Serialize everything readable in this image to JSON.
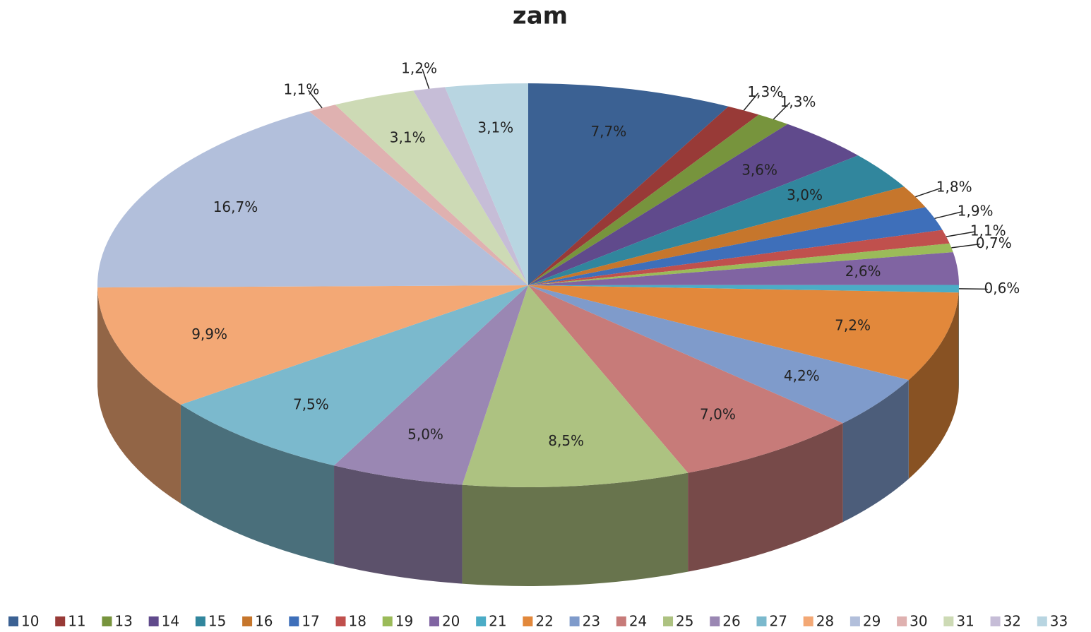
{
  "chart_data": {
    "type": "pie",
    "title": "zam",
    "categories": [
      "10",
      "11",
      "13",
      "14",
      "15",
      "16",
      "17",
      "18",
      "19",
      "20",
      "21",
      "22",
      "23",
      "24",
      "25",
      "26",
      "27",
      "28",
      "29",
      "30",
      "31",
      "32",
      "33"
    ],
    "values": [
      7.7,
      1.3,
      1.3,
      3.6,
      3.0,
      1.8,
      1.9,
      1.1,
      0.7,
      2.6,
      0.6,
      7.2,
      4.2,
      7.0,
      8.5,
      5.0,
      7.5,
      9.9,
      16.7,
      1.1,
      3.1,
      1.2,
      3.1
    ],
    "value_labels": [
      "7,7%",
      "1,3%",
      "1,3%",
      "3,6%",
      "3,0%",
      "1,8%",
      "1,9%",
      "1,1%",
      "0,7%",
      "2,6%",
      "0,6%",
      "7,2%",
      "4,2%",
      "7,0%",
      "8,5%",
      "5,0%",
      "7,5%",
      "9,9%",
      "16,7%",
      "1,1%",
      "3,1%",
      "1,2%",
      "3,1%"
    ],
    "colors": [
      "#3b6193",
      "#983a37",
      "#77943d",
      "#604a8c",
      "#31869d",
      "#c6762c",
      "#3e6fba",
      "#c0504d",
      "#9bbb59",
      "#8064a2",
      "#4bacc6",
      "#e2883b",
      "#7f9bcb",
      "#c77b79",
      "#adc281",
      "#9a87b3",
      "#7bb9cd",
      "#f3a875",
      "#b2bfdb",
      "#dfb1b0",
      "#cddab5",
      "#c6bdd7",
      "#b8d5e1"
    ],
    "legend": "bottom"
  }
}
